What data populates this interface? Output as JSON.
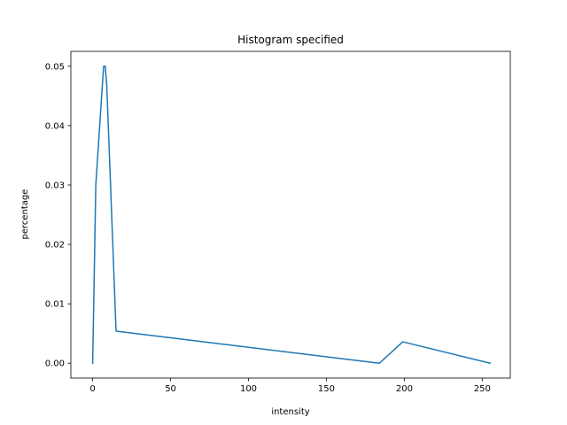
{
  "chart_data": {
    "type": "line",
    "title": "Histogram specified",
    "xlabel": "intensity",
    "ylabel": "percentage",
    "xlim": [
      -14,
      268
    ],
    "ylim": [
      -0.0025,
      0.0525
    ],
    "xticks": [
      0,
      50,
      100,
      150,
      200,
      250
    ],
    "xtick_labels": [
      "0",
      "50",
      "100",
      "150",
      "200",
      "250"
    ],
    "yticks": [
      0,
      0.01,
      0.02,
      0.03,
      0.04,
      0.05
    ],
    "ytick_labels": [
      "0.00",
      "0.01",
      "0.02",
      "0.03",
      "0.04",
      "0.05"
    ],
    "grid": false,
    "series": [
      {
        "color": "#1f77b4",
        "x": [
          0,
          1,
          2,
          7,
          8,
          9,
          15,
          184,
          199,
          255
        ],
        "y": [
          0,
          0.015,
          0.03,
          0.05,
          0.05,
          0.047,
          0.0054,
          0,
          0.0036,
          0
        ]
      }
    ]
  }
}
